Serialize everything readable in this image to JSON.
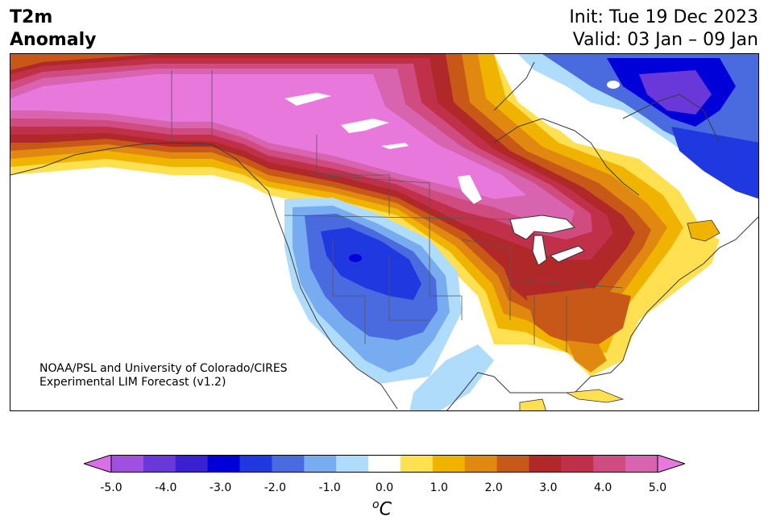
{
  "header": {
    "title_line1": "T2m",
    "title_line2": "Anomaly",
    "init": "Init: Tue 19 Dec 2023",
    "valid": "Valid: 03 Jan – 09 Jan"
  },
  "credit": {
    "line1": "NOAA/PSL and University of Colorado/CIRES",
    "line2": "Experimental LIM Forecast (v1.2)"
  },
  "colorbar": {
    "colors": [
      "#d86fe8",
      "#a050e0",
      "#6a38d8",
      "#3a20d0",
      "#0000d8",
      "#2038e0",
      "#4a6ae0",
      "#78acf0",
      "#b0dcfc",
      "#ffffff",
      "#ffe050",
      "#f0b400",
      "#e08810",
      "#c85818",
      "#b02828",
      "#c03048",
      "#d04c80",
      "#d864b0",
      "#e878dc"
    ],
    "tick_labels": [
      "-5.0",
      "-4.0",
      "-3.0",
      "-2.0",
      "-1.0",
      "0.0",
      "1.0",
      "2.0",
      "3.0",
      "4.0",
      "5.0"
    ],
    "units_base": "C",
    "units_sup": "o"
  }
}
